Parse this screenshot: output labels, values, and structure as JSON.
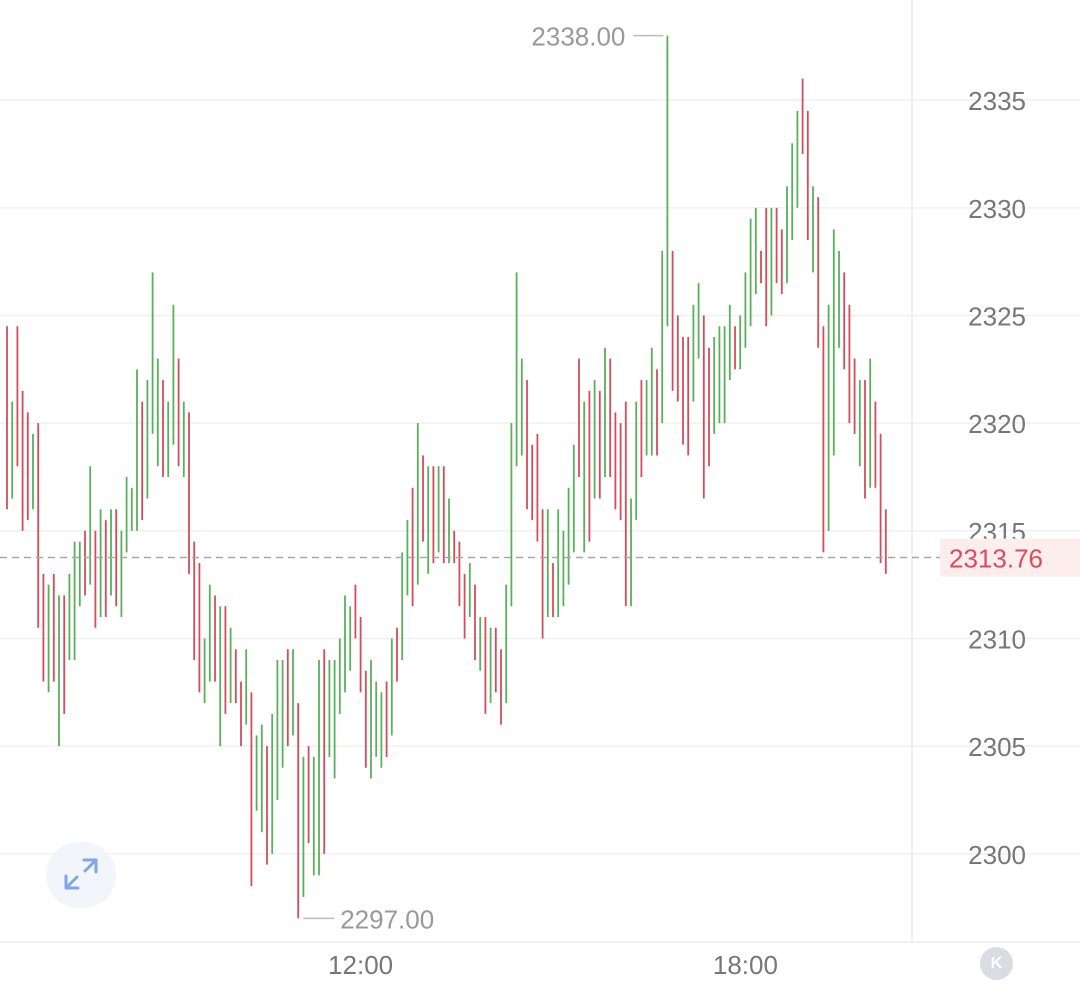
{
  "chart_data": {
    "type": "ohlc",
    "y_axis": {
      "ticks": [
        "2300",
        "2305",
        "2310",
        "2315",
        "2320",
        "2325",
        "2330",
        "2335"
      ],
      "tick_values": [
        2300,
        2305,
        2310,
        2315,
        2320,
        2325,
        2330,
        2335
      ],
      "ylim": [
        2295,
        2340
      ],
      "position": "right",
      "grid": true
    },
    "x_axis": {
      "ticks": [
        "12:00",
        "18:00"
      ],
      "tick_index": [
        68,
        142
      ]
    },
    "annotations": {
      "high_label": "2338.00",
      "high_value": 2338.0,
      "high_index": 127,
      "low_label": "2297.00",
      "low_value": 2297.0,
      "low_index": 56
    },
    "last_price": {
      "label": "2313.76",
      "value": 2313.76
    },
    "colors": {
      "up": "#58b05b",
      "down": "#d64b5b",
      "grid": "#f0f0f0",
      "axis_text": "#777777",
      "last_price": "#e04a5a",
      "last_price_bg": "#fdeeee"
    },
    "bars": [
      [
        2320.0,
        2324.5,
        2316.0,
        2316.5
      ],
      [
        2316.5,
        2321.0,
        2316.5,
        2321.0
      ],
      [
        2321.0,
        2324.5,
        2318.0,
        2319.0
      ],
      [
        2319.5,
        2321.5,
        2315.0,
        2319.0
      ],
      [
        2319.0,
        2320.5,
        2315.5,
        2317.5
      ],
      [
        2317.5,
        2319.5,
        2316.0,
        2319.5
      ],
      [
        2319.5,
        2320.0,
        2310.5,
        2311.5
      ],
      [
        2312.0,
        2313.0,
        2308.0,
        2309.0
      ],
      [
        2309.0,
        2312.5,
        2307.5,
        2312.0
      ],
      [
        2311.0,
        2313.0,
        2308.0,
        2308.5
      ],
      [
        2308.5,
        2312.0,
        2305.0,
        2311.5
      ],
      [
        2311.5,
        2312.0,
        2306.5,
        2309.0
      ],
      [
        2309.0,
        2313.0,
        2309.0,
        2312.0
      ],
      [
        2311.5,
        2314.5,
        2309.0,
        2313.5
      ],
      [
        2313.5,
        2314.5,
        2311.5,
        2313.5
      ],
      [
        2313.5,
        2315.0,
        2312.0,
        2312.5
      ],
      [
        2312.5,
        2318.0,
        2312.5,
        2315.0
      ],
      [
        2314.0,
        2315.0,
        2310.5,
        2311.5
      ],
      [
        2311.5,
        2316.0,
        2311.0,
        2315.5
      ],
      [
        2315.0,
        2315.5,
        2311.0,
        2312.5
      ],
      [
        2312.5,
        2316.0,
        2312.0,
        2315.5
      ],
      [
        2315.5,
        2316.0,
        2311.5,
        2311.5
      ],
      [
        2312.0,
        2315.0,
        2311.0,
        2314.0
      ],
      [
        2314.0,
        2317.5,
        2314.0,
        2315.5
      ],
      [
        2315.5,
        2317.0,
        2315.0,
        2316.0
      ],
      [
        2315.5,
        2322.5,
        2315.0,
        2319.5
      ],
      [
        2320.0,
        2321.0,
        2315.5,
        2317.5
      ],
      [
        2316.5,
        2322.0,
        2316.5,
        2321.0
      ],
      [
        2321.0,
        2327.0,
        2319.5,
        2321.5
      ],
      [
        2321.0,
        2323.0,
        2318.0,
        2322.5
      ],
      [
        2322.0,
        2321.0,
        2317.5,
        2318.5
      ],
      [
        2318.0,
        2321.0,
        2317.5,
        2320.0
      ],
      [
        2319.0,
        2325.5,
        2319.0,
        2322.5
      ],
      [
        2323.0,
        2322.5,
        2318.0,
        2319.0
      ],
      [
        2319.0,
        2321.0,
        2317.5,
        2319.0
      ],
      [
        2319.0,
        2320.5,
        2314.5,
        2313.0
      ],
      [
        2313.5,
        2314.5,
        2309.0,
        2313.0
      ],
      [
        2313.0,
        2313.5,
        2307.5,
        2309.5
      ],
      [
        2309.0,
        2310.0,
        2307.0,
        2309.0
      ],
      [
        2309.0,
        2312.5,
        2308.0,
        2311.5
      ],
      [
        2311.5,
        2312.0,
        2308.0,
        2309.0
      ],
      [
        2308.5,
        2311.5,
        2305.0,
        2311.5
      ],
      [
        2311.5,
        2311.0,
        2306.5,
        2308.0
      ],
      [
        2308.5,
        2310.5,
        2307.0,
        2309.5
      ],
      [
        2309.5,
        2309.0,
        2307.0,
        2308.0
      ],
      [
        2308.0,
        2308.0,
        2305.0,
        2307.5
      ],
      [
        2308.0,
        2309.5,
        2306.0,
        2308.0
      ],
      [
        2307.5,
        2307.0,
        2298.5,
        2302.0
      ],
      [
        2302.0,
        2305.5,
        2303.0,
        2303.0
      ],
      [
        2303.0,
        2306.0,
        2301.0,
        2305.0
      ],
      [
        2305.0,
        2305.0,
        2299.5,
        2301.0
      ],
      [
        2301.0,
        2306.5,
        2300.0,
        2305.0
      ],
      [
        2305.0,
        2309.0,
        2302.5,
        2305.0
      ],
      [
        2305.0,
        2309.0,
        2304.0,
        2308.5
      ],
      [
        2308.5,
        2309.5,
        2305.0,
        2305.5
      ],
      [
        2305.5,
        2309.5,
        2305.5,
        2306.5
      ],
      [
        2306.5,
        2307.0,
        2297.0,
        2297.0
      ],
      [
        2298.0,
        2304.5,
        2298.0,
        2304.0
      ],
      [
        2304.0,
        2305.0,
        2300.5,
        2301.5
      ],
      [
        2301.0,
        2304.5,
        2299.0,
        2304.5
      ],
      [
        2304.5,
        2309.0,
        2299.0,
        2308.5
      ],
      [
        2309.5,
        2309.0,
        2300.0,
        2305.5
      ],
      [
        2306.5,
        2309.0,
        2304.5,
        2307.5
      ],
      [
        2307.0,
        2309.0,
        2303.5,
        2307.0
      ],
      [
        2307.0,
        2310.0,
        2306.5,
        2307.5
      ],
      [
        2307.5,
        2312.0,
        2308.5,
        2310.0
      ],
      [
        2310.5,
        2311.5,
        2308.5,
        2311.5
      ],
      [
        2311.5,
        2312.5,
        2310.0,
        2311.0
      ],
      [
        2311.0,
        2310.5,
        2307.5,
        2308.5
      ],
      [
        2308.5,
        2308.0,
        2304.0,
        2305.0
      ],
      [
        2305.0,
        2309.0,
        2303.5,
        2306.5
      ],
      [
        2306.5,
        2308.0,
        2304.5,
        2306.5
      ],
      [
        2306.5,
        2307.5,
        2304.0,
        2307.0
      ],
      [
        2307.0,
        2308.0,
        2304.5,
        2306.0
      ],
      [
        2306.0,
        2310.0,
        2305.5,
        2309.5
      ],
      [
        2309.5,
        2310.5,
        2308.0,
        2309.0
      ],
      [
        2309.0,
        2314.0,
        2309.0,
        2312.0
      ],
      [
        2312.0,
        2315.5,
        2313.0,
        2315.0
      ],
      [
        2315.0,
        2317.0,
        2311.5,
        2313.0
      ],
      [
        2312.5,
        2320.0,
        2312.5,
        2318.5
      ],
      [
        2318.5,
        2317.5,
        2314.5,
        2315.0
      ],
      [
        2315.0,
        2318.0,
        2313.0,
        2316.0
      ],
      [
        2316.0,
        2318.0,
        2313.5,
        2314.5
      ],
      [
        2314.5,
        2318.0,
        2314.0,
        2317.0
      ],
      [
        2317.0,
        2318.0,
        2313.5,
        2314.0
      ],
      [
        2314.0,
        2316.5,
        2313.5,
        2314.0
      ],
      [
        2314.0,
        2315.0,
        2313.5,
        2313.5
      ],
      [
        2313.5,
        2314.5,
        2311.5,
        2312.5
      ],
      [
        2312.5,
        2313.0,
        2310.0,
        2312.0
      ],
      [
        2312.0,
        2313.5,
        2311.0,
        2312.5
      ],
      [
        2312.5,
        2312.5,
        2309.0,
        2309.5
      ],
      [
        2309.5,
        2311.0,
        2308.5,
        2310.0
      ],
      [
        2310.0,
        2311.0,
        2306.5,
        2308.0
      ],
      [
        2308.0,
        2310.5,
        2307.0,
        2310.0
      ],
      [
        2310.0,
        2310.5,
        2307.5,
        2309.5
      ],
      [
        2309.5,
        2309.5,
        2306.0,
        2307.0
      ],
      [
        2307.0,
        2312.5,
        2307.0,
        2312.0
      ],
      [
        2312.0,
        2320.0,
        2311.5,
        2318.0
      ],
      [
        2318.0,
        2327.0,
        2318.0,
        2318.5
      ],
      [
        2318.5,
        2323.0,
        2318.5,
        2322.5
      ],
      [
        2322.0,
        2320.0,
        2316.0,
        2319.0
      ],
      [
        2319.0,
        2319.0,
        2315.5,
        2317.0
      ],
      [
        2317.0,
        2319.5,
        2314.5,
        2315.0
      ],
      [
        2315.0,
        2316.0,
        2310.0,
        2311.0
      ],
      [
        2311.0,
        2316.0,
        2311.0,
        2313.0
      ],
      [
        2313.0,
        2313.5,
        2311.0,
        2311.5
      ],
      [
        2311.5,
        2316.0,
        2311.0,
        2313.0
      ],
      [
        2313.0,
        2315.0,
        2311.5,
        2313.0
      ],
      [
        2313.0,
        2317.0,
        2312.5,
        2315.0
      ],
      [
        2315.0,
        2319.0,
        2314.0,
        2318.5
      ],
      [
        2318.5,
        2323.0,
        2317.5,
        2318.0
      ],
      [
        2318.0,
        2321.0,
        2314.0,
        2320.0
      ],
      [
        2320.0,
        2321.5,
        2314.5,
        2316.5
      ],
      [
        2316.5,
        2322.0,
        2316.5,
        2321.5
      ],
      [
        2321.5,
        2321.0,
        2316.5,
        2317.5
      ],
      [
        2317.5,
        2323.5,
        2318.0,
        2322.5
      ],
      [
        2322.5,
        2323.0,
        2317.5,
        2318.0
      ],
      [
        2318.0,
        2320.5,
        2316.0,
        2317.0
      ],
      [
        2317.0,
        2320.0,
        2315.5,
        2316.0
      ],
      [
        2316.0,
        2321.0,
        2311.5,
        2311.5
      ],
      [
        2311.5,
        2316.5,
        2313.5,
        2315.5
      ],
      [
        2315.5,
        2321.0,
        2315.5,
        2319.5
      ],
      [
        2319.5,
        2322.0,
        2317.5,
        2318.5
      ],
      [
        2318.5,
        2322.0,
        2319.0,
        2320.5
      ],
      [
        2320.5,
        2323.5,
        2318.5,
        2321.5
      ],
      [
        2321.5,
        2322.5,
        2318.5,
        2321.0
      ],
      [
        2321.0,
        2328.0,
        2320.0,
        2324.5
      ],
      [
        2324.5,
        2338.0,
        2324.5,
        2328.0
      ],
      [
        2328.0,
        2328.0,
        2321.5,
        2324.0
      ],
      [
        2324.0,
        2325.0,
        2321.0,
        2323.0
      ],
      [
        2323.0,
        2324.0,
        2319.0,
        2322.0
      ],
      [
        2322.0,
        2324.0,
        2318.5,
        2321.0
      ],
      [
        2321.0,
        2325.5,
        2321.0,
        2324.0
      ],
      [
        2324.0,
        2326.5,
        2323.0,
        2325.0
      ],
      [
        2325.0,
        2324.0,
        2316.5,
        2322.5
      ],
      [
        2322.5,
        2323.5,
        2318.0,
        2321.0
      ],
      [
        2321.0,
        2324.0,
        2319.5,
        2321.5
      ],
      [
        2321.5,
        2324.5,
        2320.0,
        2323.0
      ],
      [
        2323.0,
        2324.5,
        2320.0,
        2324.5
      ],
      [
        2324.0,
        2325.5,
        2322.0,
        2324.5
      ],
      [
        2324.5,
        2324.0,
        2322.5,
        2322.5
      ],
      [
        2322.5,
        2325.0,
        2322.5,
        2324.0
      ],
      [
        2324.0,
        2327.0,
        2323.5,
        2324.5
      ],
      [
        2324.5,
        2329.5,
        2325.5,
        2328.0
      ],
      [
        2328.0,
        2330.0,
        2326.0,
        2328.0
      ],
      [
        2328.0,
        2328.0,
        2326.5,
        2327.5
      ],
      [
        2327.5,
        2330.0,
        2324.5,
        2325.0
      ],
      [
        2325.0,
        2330.0,
        2325.5,
        2329.5
      ],
      [
        2329.5,
        2330.0,
        2326.5,
        2328.0
      ],
      [
        2328.0,
        2329.0,
        2326.0,
        2327.5
      ],
      [
        2327.5,
        2331.0,
        2326.5,
        2328.5
      ],
      [
        2328.5,
        2333.0,
        2328.5,
        2331.0
      ],
      [
        2331.0,
        2334.5,
        2330.0,
        2334.0
      ],
      [
        2334.0,
        2336.0,
        2332.5,
        2333.5
      ],
      [
        2333.5,
        2334.5,
        2328.5,
        2329.5
      ],
      [
        2329.5,
        2331.0,
        2327.0,
        2330.5
      ],
      [
        2330.5,
        2330.5,
        2323.5,
        2323.5
      ],
      [
        2323.5,
        2324.5,
        2314.0,
        2318.5
      ],
      [
        2318.5,
        2325.5,
        2315.0,
        2319.0
      ],
      [
        2319.0,
        2329.0,
        2318.5,
        2325.0
      ],
      [
        2325.0,
        2328.0,
        2323.5,
        2326.5
      ],
      [
        2326.5,
        2327.0,
        2322.5,
        2324.0
      ],
      [
        2324.0,
        2325.5,
        2320.0,
        2321.5
      ],
      [
        2321.5,
        2323.0,
        2319.5,
        2320.5
      ],
      [
        2320.5,
        2322.0,
        2318.0,
        2321.0
      ],
      [
        2321.0,
        2322.0,
        2316.5,
        2318.0
      ],
      [
        2318.0,
        2323.0,
        2317.0,
        2320.0
      ],
      [
        2320.0,
        2321.0,
        2317.0,
        2317.5
      ],
      [
        2317.5,
        2319.5,
        2313.5,
        2315.0
      ],
      [
        2315.0,
        2316.0,
        2313.0,
        2313.76
      ]
    ]
  },
  "controls": {
    "expand_icon": "expand-arrows-icon",
    "k_button_label": "K"
  }
}
